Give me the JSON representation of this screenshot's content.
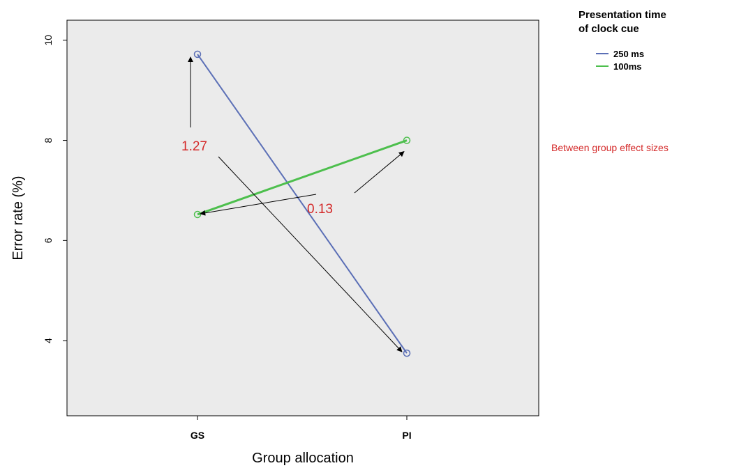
{
  "chart_data": {
    "type": "line",
    "xlabel": "Group allocation",
    "ylabel": "Error rate (%)",
    "categories": [
      "GS",
      "PI"
    ],
    "ylim": [
      2.5,
      10.4
    ],
    "yticks": [
      4,
      6,
      8,
      10
    ],
    "grid": false,
    "legend": {
      "title_lines": [
        "Presentation time",
        "of clock cue"
      ],
      "placement": "right-top"
    },
    "series": [
      {
        "name": "250 ms",
        "values": [
          9.72,
          3.75
        ],
        "color": "#5b6fb6"
      },
      {
        "name": "100ms",
        "values": [
          6.52,
          8.0
        ],
        "color": "#4dbf4d"
      }
    ],
    "annotations": {
      "effect_sizes": [
        {
          "label": "1.27",
          "series_index": 0
        },
        {
          "label": "0.13",
          "series_index": 1
        }
      ],
      "note": "Between group effect sizes",
      "color": "#d42a2a"
    },
    "plot_background": "#ebebeb"
  }
}
